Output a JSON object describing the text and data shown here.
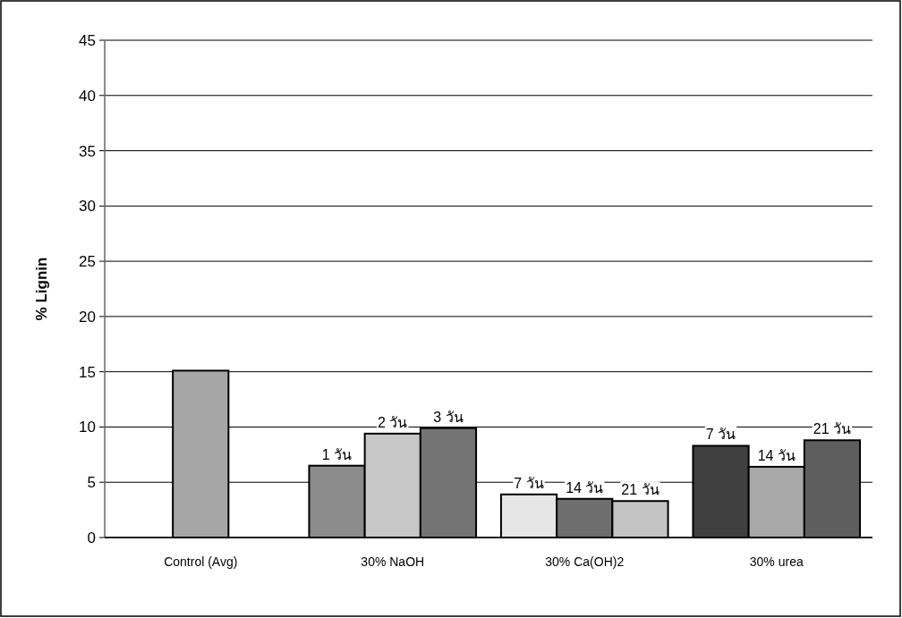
{
  "chart_data": {
    "type": "bar",
    "ylabel": "% Lignin",
    "categories": [
      "Control (Avg)",
      "30% NaOH",
      "30% Ca(OH)2",
      "30% urea"
    ],
    "series": [
      {
        "colors": [
          null,
          "#8c8c8c",
          "#e6e6e6",
          "#404040"
        ],
        "values": [
          null,
          6.5,
          3.9,
          8.3
        ]
      },
      {
        "colors": [
          "#a6a6a6",
          "#c8c8c8",
          "#6e6e6e",
          "#a8a8a8"
        ],
        "values": [
          15.1,
          9.4,
          3.5,
          6.4
        ]
      },
      {
        "colors": [
          null,
          "#747474",
          "#c4c4c4",
          "#5e5e5e"
        ],
        "values": [
          null,
          9.9,
          3.3,
          8.8
        ]
      }
    ],
    "annotations": [
      "1 วัน",
      "2 วัน",
      "3 วัน",
      "7 วัน",
      "14 วัน",
      "21 วัน",
      "7 วัน",
      "14 วัน",
      "21 วัน"
    ],
    "ylim": [
      0,
      45
    ],
    "yticks": [
      0,
      5,
      10,
      15,
      20,
      25,
      30,
      35,
      40,
      45
    ],
    "grid": "y"
  }
}
